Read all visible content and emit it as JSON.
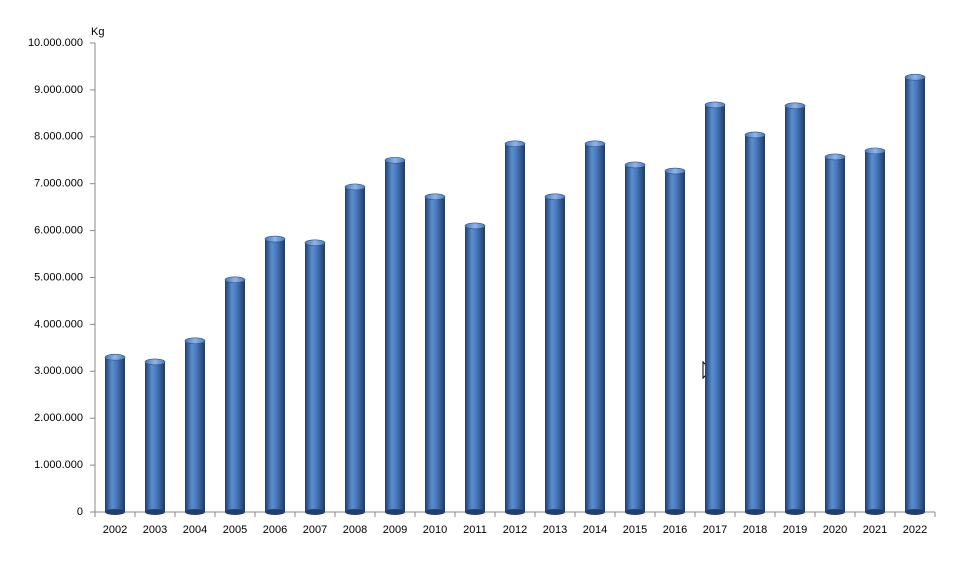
{
  "chart_data": {
    "type": "bar",
    "y_axis_label": "Kg",
    "categories": [
      "2002",
      "2003",
      "2004",
      "2005",
      "2006",
      "2007",
      "2008",
      "2009",
      "2010",
      "2011",
      "2012",
      "2013",
      "2014",
      "2015",
      "2016",
      "2017",
      "2018",
      "2019",
      "2020",
      "2021",
      "2022"
    ],
    "values": [
      3300000,
      3200000,
      3650000,
      4950000,
      5820000,
      5740000,
      6930000,
      7500000,
      6720000,
      6100000,
      7850000,
      6720000,
      7850000,
      7400000,
      7270000,
      8680000,
      8040000,
      8660000,
      7570000,
      7700000,
      9270000
    ],
    "color": "#4f81bd",
    "ylim": [
      0,
      10000000
    ],
    "yticks": [
      0,
      {
        "value": 1000000,
        "label": "1.000.000"
      },
      {
        "value": 2000000,
        "label": "2.000.000"
      },
      {
        "value": 3000000,
        "label": "3.000.000"
      },
      {
        "value": 4000000,
        "label": "4.000.000"
      },
      {
        "value": 5000000,
        "label": "5.000.000"
      },
      {
        "value": 6000000,
        "label": "6.000.000"
      },
      {
        "value": 7000000,
        "label": "7.000.000"
      },
      {
        "value": 8000000,
        "label": "8.000.000"
      },
      {
        "value": 9000000,
        "label": "9.000.000"
      },
      {
        "value": 10000000,
        "label": "10.000.000"
      }
    ],
    "grid": false
  }
}
